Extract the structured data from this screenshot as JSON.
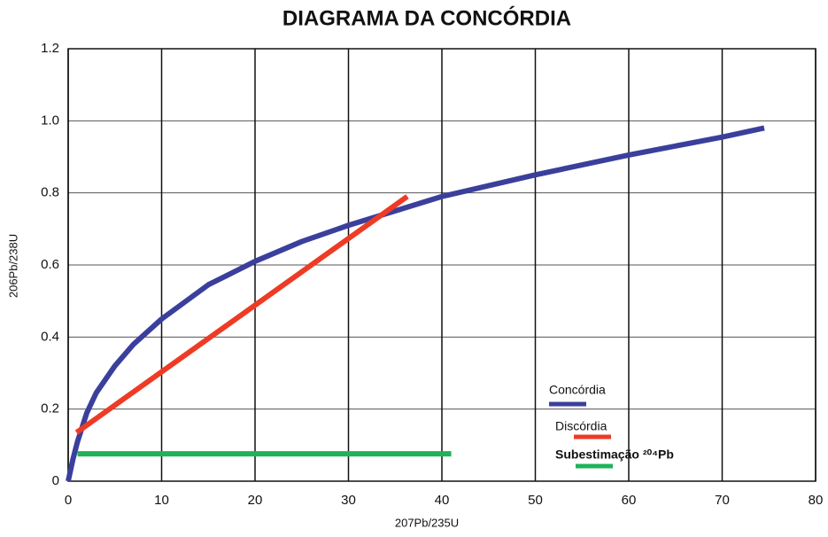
{
  "chart_data": {
    "type": "line",
    "title": "DIAGRAMA DA CONCÓRDIA",
    "x_label": "207Pb/235U",
    "y_label": "206Pb/238U",
    "xlim": [
      0,
      80
    ],
    "xticks": [
      0,
      10,
      20,
      30,
      40,
      50,
      60,
      70,
      80
    ],
    "ylim": [
      0,
      1.2
    ],
    "yticks": [
      0,
      0.2,
      0.4,
      0.6,
      0.8,
      {
        "value": 1,
        "label": "1.0"
      },
      1.2
    ],
    "grid": true,
    "series": [
      {
        "name": "Concórdia",
        "color": "#3b3f9c",
        "x": [
          0,
          0.5,
          1,
          2,
          3,
          5,
          7,
          10,
          15,
          20,
          25,
          30,
          35,
          40,
          50,
          60,
          70,
          74.5
        ],
        "values": [
          0,
          0.06,
          0.11,
          0.19,
          0.245,
          0.32,
          0.38,
          0.45,
          0.545,
          0.61,
          0.665,
          0.71,
          0.75,
          0.79,
          0.85,
          0.905,
          0.955,
          0.98
        ]
      },
      {
        "name": "Discórdia",
        "color": "#ee3b26",
        "x": [
          0.9,
          36.3
        ],
        "values": [
          0.135,
          0.79
        ]
      },
      {
        "name": "Subestimação ²⁰⁴Pb",
        "color": "#1fb25a",
        "x": [
          1,
          41
        ],
        "values": [
          0.076,
          0.076
        ]
      }
    ]
  }
}
